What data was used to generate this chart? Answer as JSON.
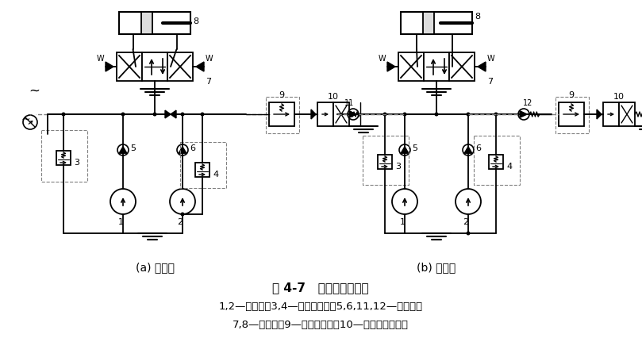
{
  "title": "图 4-7   溢流阀控制回路",
  "caption_line1": "1,2—液压泵；3,4—先导溢流阀；5,6,11,12—单向阀；",
  "caption_line2": "7,8—液压缸；9—远程调压阀；10—二位二通电磁阀",
  "label_a": "(a) 改进前",
  "label_b": "(b) 改进后",
  "bg_color": "#ffffff",
  "lc": "#000000"
}
